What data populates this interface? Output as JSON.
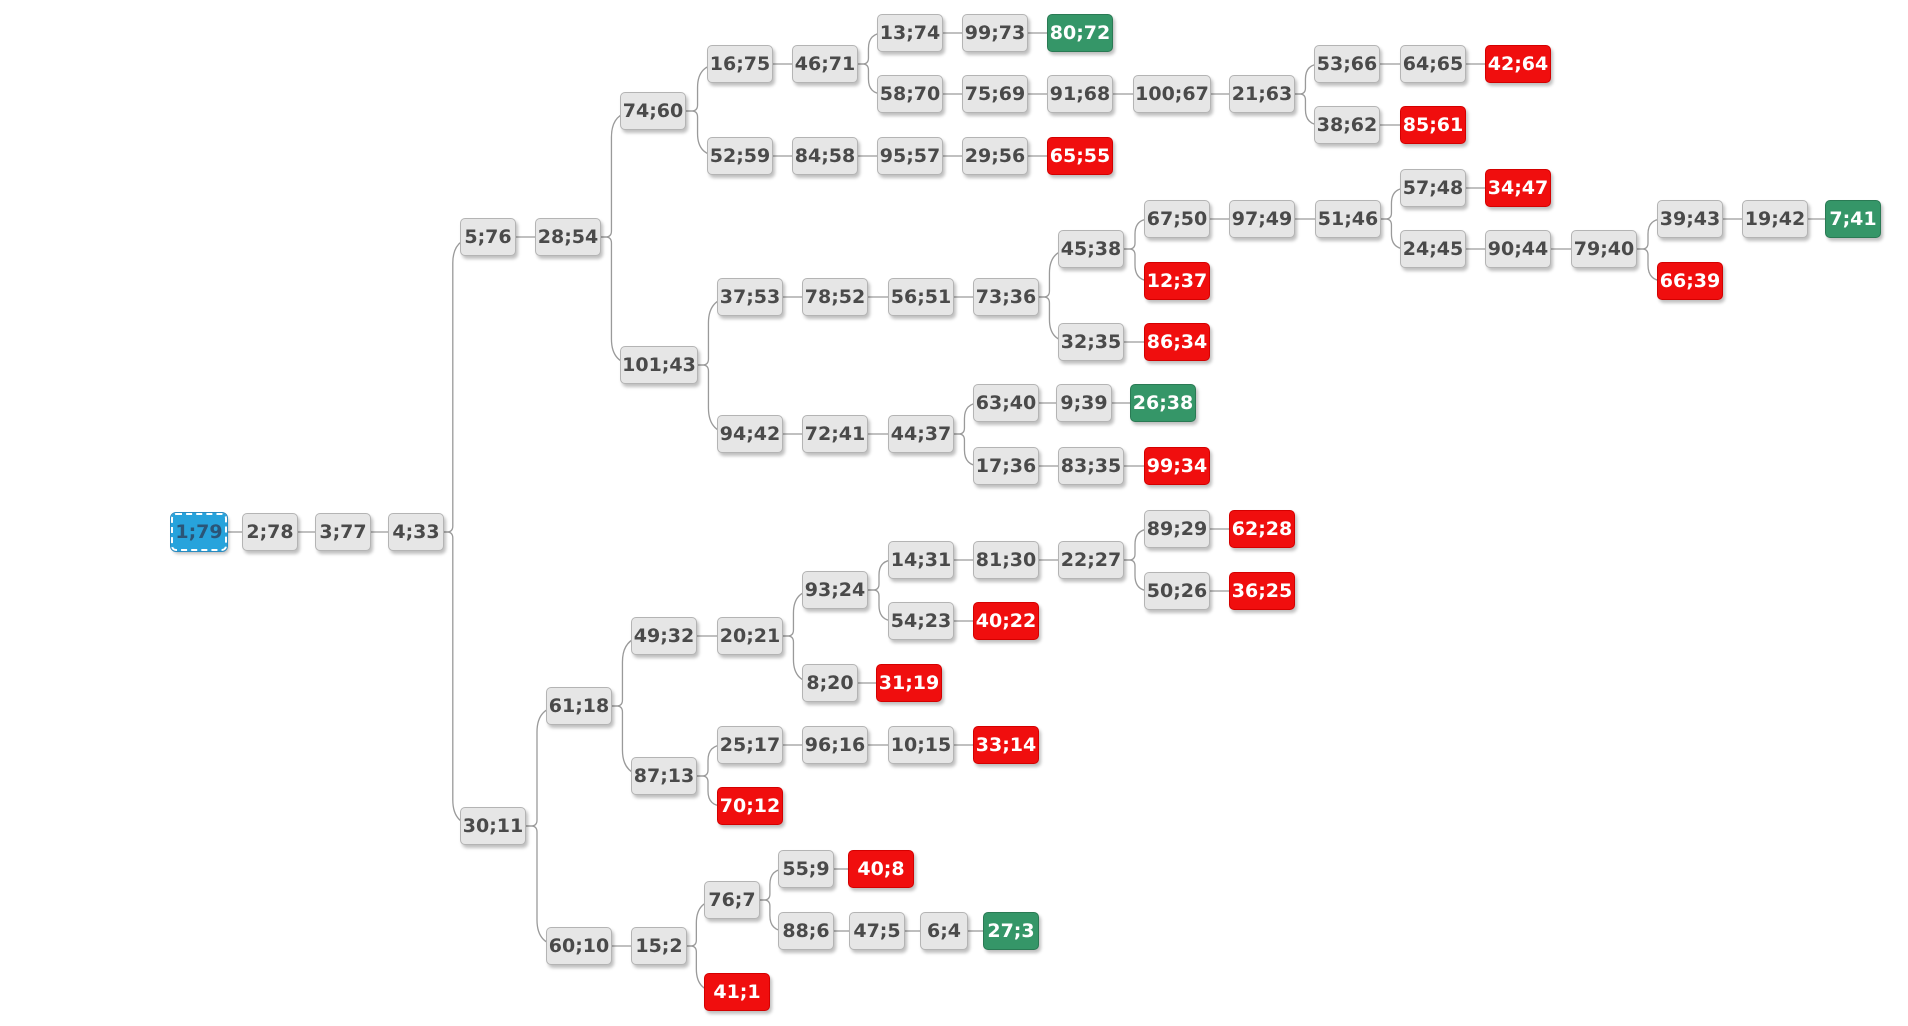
{
  "colors": {
    "node": "#e6e6e6",
    "dead_end": "#f00e0e",
    "goal": "#359668",
    "root": "#27a3dc",
    "edge": "#9a9a9a"
  },
  "tree": {
    "root": "n1",
    "nodes": {
      "n1": {
        "label": "1;79",
        "kind": "root",
        "children": [
          "n2"
        ]
      },
      "n2": {
        "label": "2;78",
        "kind": "normal",
        "children": [
          "n3"
        ]
      },
      "n3": {
        "label": "3;77",
        "kind": "normal",
        "children": [
          "n4"
        ]
      },
      "n4": {
        "label": "4;33",
        "kind": "normal",
        "children": [
          "n5",
          "n6"
        ]
      },
      "n5": {
        "label": "5;76",
        "kind": "normal",
        "children": [
          "n7"
        ]
      },
      "n7": {
        "label": "28;54",
        "kind": "normal",
        "children": [
          "n8",
          "n9"
        ]
      },
      "n8": {
        "label": "74;60",
        "kind": "normal",
        "children": [
          "n10",
          "n11"
        ]
      },
      "n10": {
        "label": "16;75",
        "kind": "normal",
        "children": [
          "n12"
        ]
      },
      "n12": {
        "label": "46;71",
        "kind": "normal",
        "children": [
          "n13",
          "n14"
        ]
      },
      "n13": {
        "label": "13;74",
        "kind": "normal",
        "children": [
          "n15"
        ]
      },
      "n15": {
        "label": "99;73",
        "kind": "normal",
        "children": [
          "n16"
        ]
      },
      "n16": {
        "label": "80;72",
        "kind": "goal",
        "children": []
      },
      "n14": {
        "label": "58;70",
        "kind": "normal",
        "children": [
          "n17"
        ]
      },
      "n17": {
        "label": "75;69",
        "kind": "normal",
        "children": [
          "n18"
        ]
      },
      "n18": {
        "label": "91;68",
        "kind": "normal",
        "children": [
          "n19"
        ]
      },
      "n19": {
        "label": "100;67",
        "kind": "normal",
        "children": [
          "n20"
        ]
      },
      "n20": {
        "label": "21;63",
        "kind": "normal",
        "children": [
          "n21",
          "n22"
        ]
      },
      "n21": {
        "label": "53;66",
        "kind": "normal",
        "children": [
          "n23"
        ]
      },
      "n23": {
        "label": "64;65",
        "kind": "normal",
        "children": [
          "n24"
        ]
      },
      "n24": {
        "label": "42;64",
        "kind": "dead",
        "children": []
      },
      "n22": {
        "label": "38;62",
        "kind": "normal",
        "children": [
          "n25"
        ]
      },
      "n25": {
        "label": "85;61",
        "kind": "dead",
        "children": []
      },
      "n11": {
        "label": "52;59",
        "kind": "normal",
        "children": [
          "n26"
        ]
      },
      "n26": {
        "label": "84;58",
        "kind": "normal",
        "children": [
          "n27"
        ]
      },
      "n27": {
        "label": "95;57",
        "kind": "normal",
        "children": [
          "n28"
        ]
      },
      "n28": {
        "label": "29;56",
        "kind": "normal",
        "children": [
          "n29"
        ]
      },
      "n29": {
        "label": "65;55",
        "kind": "dead",
        "children": []
      },
      "n9": {
        "label": "101;43",
        "kind": "normal",
        "children": [
          "n30",
          "n31"
        ]
      },
      "n30": {
        "label": "37;53",
        "kind": "normal",
        "children": [
          "n32"
        ]
      },
      "n32": {
        "label": "78;52",
        "kind": "normal",
        "children": [
          "n33"
        ]
      },
      "n33": {
        "label": "56;51",
        "kind": "normal",
        "children": [
          "n34"
        ]
      },
      "n34": {
        "label": "73;36",
        "kind": "normal",
        "children": [
          "n35",
          "n36"
        ]
      },
      "n35": {
        "label": "45;38",
        "kind": "normal",
        "children": [
          "n37",
          "n38"
        ]
      },
      "n37": {
        "label": "67;50",
        "kind": "normal",
        "children": [
          "n39"
        ]
      },
      "n39": {
        "label": "97;49",
        "kind": "normal",
        "children": [
          "n40"
        ]
      },
      "n40": {
        "label": "51;46",
        "kind": "normal",
        "children": [
          "n41",
          "n42"
        ]
      },
      "n41": {
        "label": "57;48",
        "kind": "normal",
        "children": [
          "n43"
        ]
      },
      "n43": {
        "label": "34;47",
        "kind": "dead",
        "children": []
      },
      "n42": {
        "label": "24;45",
        "kind": "normal",
        "children": [
          "n44"
        ]
      },
      "n44": {
        "label": "90;44",
        "kind": "normal",
        "children": [
          "n45"
        ]
      },
      "n45": {
        "label": "79;40",
        "kind": "normal",
        "children": [
          "n46",
          "n47"
        ]
      },
      "n46": {
        "label": "39;43",
        "kind": "normal",
        "children": [
          "n48"
        ]
      },
      "n48": {
        "label": "19;42",
        "kind": "normal",
        "children": [
          "n49"
        ]
      },
      "n49": {
        "label": "7;41",
        "kind": "goal",
        "children": []
      },
      "n47": {
        "label": "66;39",
        "kind": "dead",
        "children": []
      },
      "n38": {
        "label": "12;37",
        "kind": "dead",
        "children": []
      },
      "n36": {
        "label": "32;35",
        "kind": "normal",
        "children": [
          "n50"
        ]
      },
      "n50": {
        "label": "86;34",
        "kind": "dead",
        "children": []
      },
      "n31": {
        "label": "94;42",
        "kind": "normal",
        "children": [
          "n51"
        ]
      },
      "n51": {
        "label": "72;41",
        "kind": "normal",
        "children": [
          "n52"
        ]
      },
      "n52": {
        "label": "44;37",
        "kind": "normal",
        "children": [
          "n53",
          "n54"
        ]
      },
      "n53": {
        "label": "63;40",
        "kind": "normal",
        "children": [
          "n55"
        ]
      },
      "n55": {
        "label": "9;39",
        "kind": "normal",
        "children": [
          "n56"
        ]
      },
      "n56": {
        "label": "26;38",
        "kind": "goal",
        "children": []
      },
      "n54": {
        "label": "17;36",
        "kind": "normal",
        "children": [
          "n57"
        ]
      },
      "n57": {
        "label": "83;35",
        "kind": "normal",
        "children": [
          "n58"
        ]
      },
      "n58": {
        "label": "99;34",
        "kind": "dead",
        "children": []
      },
      "n6": {
        "label": "30;11",
        "kind": "normal",
        "children": [
          "n59",
          "n60"
        ]
      },
      "n59": {
        "label": "61;18",
        "kind": "normal",
        "children": [
          "n61",
          "n62"
        ]
      },
      "n61": {
        "label": "49;32",
        "kind": "normal",
        "children": [
          "n63"
        ]
      },
      "n63": {
        "label": "20;21",
        "kind": "normal",
        "children": [
          "n64",
          "n65"
        ]
      },
      "n64": {
        "label": "93;24",
        "kind": "normal",
        "children": [
          "n66",
          "n67"
        ]
      },
      "n66": {
        "label": "14;31",
        "kind": "normal",
        "children": [
          "n68"
        ]
      },
      "n68": {
        "label": "81;30",
        "kind": "normal",
        "children": [
          "n69"
        ]
      },
      "n69": {
        "label": "22;27",
        "kind": "normal",
        "children": [
          "n70",
          "n71"
        ]
      },
      "n70": {
        "label": "89;29",
        "kind": "normal",
        "children": [
          "n72"
        ]
      },
      "n72": {
        "label": "62;28",
        "kind": "dead",
        "children": []
      },
      "n71": {
        "label": "50;26",
        "kind": "normal",
        "children": [
          "n73"
        ]
      },
      "n73": {
        "label": "36;25",
        "kind": "dead",
        "children": []
      },
      "n67": {
        "label": "54;23",
        "kind": "normal",
        "children": [
          "n74"
        ]
      },
      "n74": {
        "label": "40;22",
        "kind": "dead",
        "children": []
      },
      "n65": {
        "label": "8;20",
        "kind": "normal",
        "children": [
          "n75"
        ]
      },
      "n75": {
        "label": "31;19",
        "kind": "dead",
        "children": []
      },
      "n62": {
        "label": "87;13",
        "kind": "normal",
        "children": [
          "n76",
          "n77"
        ]
      },
      "n76": {
        "label": "25;17",
        "kind": "normal",
        "children": [
          "n78"
        ]
      },
      "n78": {
        "label": "96;16",
        "kind": "normal",
        "children": [
          "n79"
        ]
      },
      "n79": {
        "label": "10;15",
        "kind": "normal",
        "children": [
          "n80"
        ]
      },
      "n80": {
        "label": "33;14",
        "kind": "dead",
        "children": []
      },
      "n77": {
        "label": "70;12",
        "kind": "dead",
        "children": []
      },
      "n60": {
        "label": "60;10",
        "kind": "normal",
        "children": [
          "n81"
        ]
      },
      "n81": {
        "label": "15;2",
        "kind": "normal",
        "children": [
          "n82",
          "n83"
        ]
      },
      "n82": {
        "label": "76;7",
        "kind": "normal",
        "children": [
          "n84",
          "n85"
        ]
      },
      "n84": {
        "label": "55;9",
        "kind": "normal",
        "children": [
          "n86"
        ]
      },
      "n86": {
        "label": "40;8",
        "kind": "dead",
        "children": []
      },
      "n85": {
        "label": "88;6",
        "kind": "normal",
        "children": [
          "n87"
        ]
      },
      "n87": {
        "label": "47;5",
        "kind": "normal",
        "children": [
          "n88"
        ]
      },
      "n88": {
        "label": "6;4",
        "kind": "normal",
        "children": [
          "n89"
        ]
      },
      "n89": {
        "label": "27;3",
        "kind": "goal",
        "children": []
      },
      "n83": {
        "label": "41;1",
        "kind": "dead",
        "children": []
      }
    }
  }
}
